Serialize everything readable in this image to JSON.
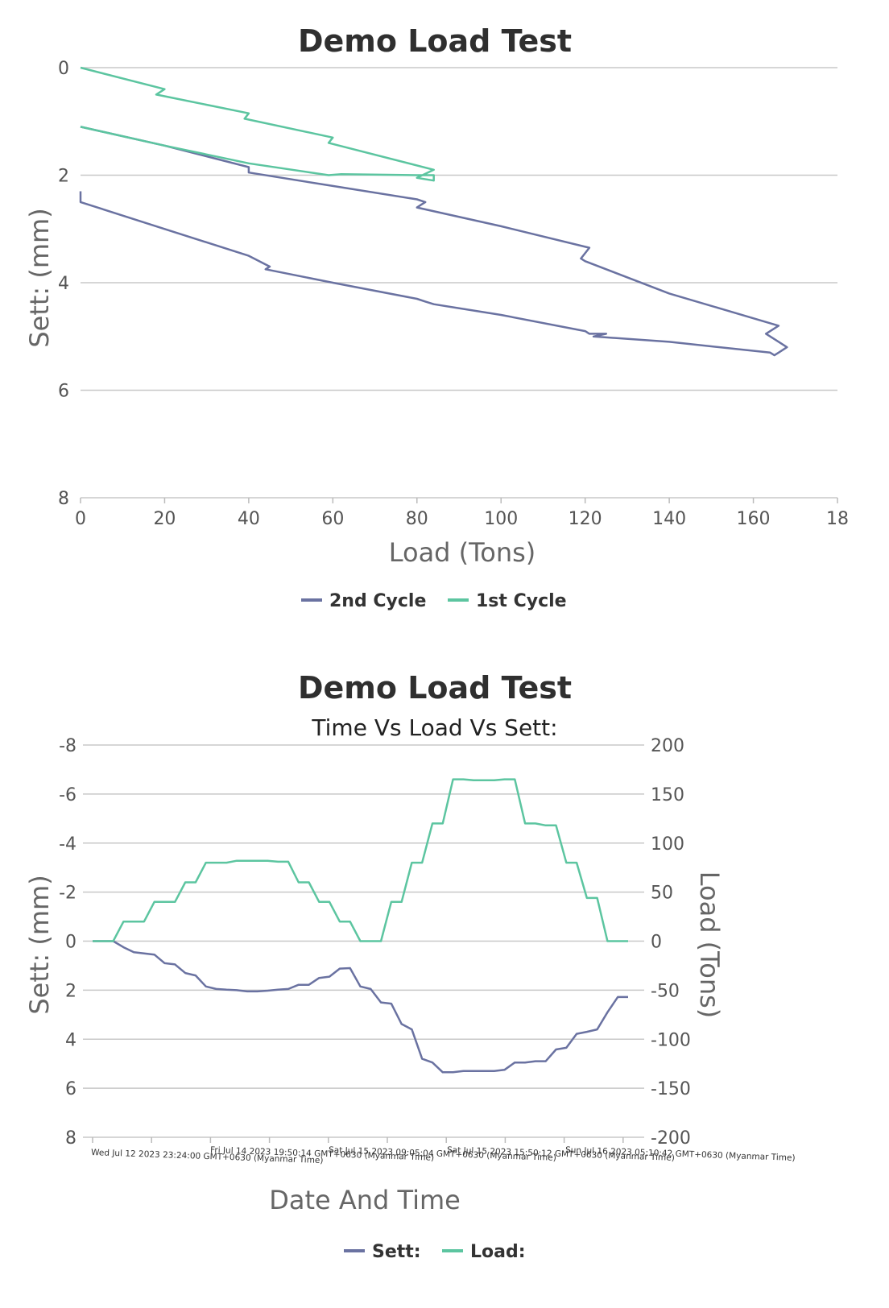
{
  "charts": [
    {
      "title": "Demo Load Test",
      "xlabel": "Load (Tons)",
      "ylabel": "Sett: (mm)",
      "legend": [
        {
          "label": "2nd Cycle",
          "color": "#6a72a1"
        },
        {
          "label": "1st Cycle",
          "color": "#5cc5a0"
        }
      ]
    },
    {
      "title": "Demo Load Test",
      "subtitle": "Time Vs Load Vs Sett:",
      "xlabel": "Date And Time",
      "ylabel_left": "Sett: (mm)",
      "ylabel_right": "Load (Tons)",
      "legend": [
        {
          "label": "Sett:",
          "color": "#6a72a1"
        },
        {
          "label": "Load:",
          "color": "#5cc5a0"
        }
      ]
    }
  ],
  "chart_data": [
    {
      "type": "line",
      "title": "Demo Load Test",
      "xlabel": "Load (Tons)",
      "ylabel": "Sett: (mm)",
      "xlim": [
        0,
        180
      ],
      "ylim": [
        0,
        8
      ],
      "y_reversed": true,
      "x_ticks": [
        "0",
        "20",
        "40",
        "60",
        "80",
        "100",
        "120",
        "140",
        "160",
        "18"
      ],
      "y_ticks": [
        "0",
        "2",
        "4",
        "6",
        "8"
      ],
      "legend_position": "bottom",
      "series": [
        {
          "name": "2nd Cycle",
          "color": "#6a72a1",
          "points": [
            [
              0,
              2.3
            ],
            [
              0,
              2.5
            ],
            [
              20,
              3.0
            ],
            [
              40,
              3.5
            ],
            [
              45,
              3.7
            ],
            [
              44,
              3.75
            ],
            [
              60,
              4.0
            ],
            [
              80,
              4.3
            ],
            [
              82,
              4.35
            ],
            [
              84,
              4.4
            ],
            [
              100,
              4.6
            ],
            [
              120,
              4.9
            ],
            [
              121,
              4.95
            ],
            [
              125,
              4.95
            ],
            [
              122,
              5.0
            ],
            [
              140,
              5.1
            ],
            [
              164,
              5.3
            ],
            [
              165,
              5.35
            ],
            [
              166,
              5.3
            ],
            [
              168,
              5.2
            ],
            [
              165,
              5.05
            ],
            [
              163,
              4.95
            ],
            [
              166,
              4.8
            ],
            [
              140,
              4.2
            ],
            [
              120,
              3.6
            ],
            [
              119,
              3.55
            ],
            [
              121,
              3.35
            ],
            [
              100,
              2.95
            ],
            [
              80,
              2.6
            ],
            [
              81,
              2.55
            ],
            [
              82,
              2.5
            ],
            [
              80,
              2.45
            ],
            [
              60,
              2.2
            ],
            [
              40,
              1.95
            ],
            [
              40,
              1.85
            ],
            [
              20,
              1.45
            ],
            [
              0,
              1.1
            ]
          ]
        },
        {
          "name": "1st Cycle",
          "color": "#5cc5a0",
          "points": [
            [
              0,
              0
            ],
            [
              20,
              0.4
            ],
            [
              18,
              0.5
            ],
            [
              40,
              0.85
            ],
            [
              39,
              0.95
            ],
            [
              60,
              1.3
            ],
            [
              59,
              1.4
            ],
            [
              84,
              1.9
            ],
            [
              80,
              2.05
            ],
            [
              84,
              2.1
            ],
            [
              84,
              2.0
            ],
            [
              80,
              2.0
            ],
            [
              62,
              1.98
            ],
            [
              59,
              2.0
            ],
            [
              40,
              1.78
            ],
            [
              20,
              1.45
            ],
            [
              0,
              1.1
            ]
          ]
        }
      ]
    },
    {
      "type": "line",
      "title": "Demo Load Test",
      "subtitle": "Time Vs Load Vs Sett:",
      "xlabel": "Date And Time",
      "ylabel_left": "Sett: (mm)",
      "ylabel_right": "Load (Tons)",
      "ylim_left": [
        -8,
        8
      ],
      "ylim_right": [
        -200,
        200
      ],
      "y_left_ticks": [
        "-8",
        "-6",
        "-4",
        "-2",
        "0",
        "2",
        "4",
        "6",
        "8"
      ],
      "y_right_ticks": [
        "200",
        "150",
        "100",
        "50",
        "0",
        "-50",
        "-100",
        "-150",
        "-200"
      ],
      "x_tick_labels": [
        "Wed Jul 12 2023 23:24:00 GMT+0630 (Myanmar Time)",
        "Fri Jul 14 2023 19:50:14 GMT+0630 (Myanmar Time)",
        "Sat Jul 15 2023 09:05:04 GMT+0630 (Myanmar Time)",
        "Sat Jul 15 2023 15:50:12 GMT+0630 (Myanmar Time)",
        "Sun Jul 16 2023 05:10:42 GMT+0630 (Myanmar Time)"
      ],
      "legend_position": "bottom",
      "series": [
        {
          "name": "Sett:",
          "axis": "left",
          "color": "#6a72a1",
          "values": [
            0,
            0,
            0,
            0.25,
            0.45,
            0.5,
            0.55,
            0.9,
            0.95,
            1.3,
            1.4,
            1.85,
            1.95,
            1.98,
            2.0,
            2.05,
            2.05,
            2.02,
            1.98,
            1.95,
            1.78,
            1.78,
            1.5,
            1.45,
            1.12,
            1.1,
            1.85,
            1.95,
            2.5,
            2.55,
            3.38,
            3.6,
            4.8,
            4.95,
            5.35,
            5.35,
            5.3,
            5.3,
            5.3,
            5.3,
            5.25,
            4.95,
            4.95,
            4.9,
            4.9,
            4.42,
            4.35,
            3.78,
            3.7,
            3.6,
            2.9,
            2.28,
            2.28
          ]
        },
        {
          "name": "Load:",
          "axis": "right",
          "color": "#5cc5a0",
          "values": [
            0,
            0,
            0,
            20,
            20,
            20,
            40,
            40,
            40,
            60,
            60,
            80,
            80,
            80,
            82,
            82,
            82,
            82,
            81,
            81,
            60,
            60,
            40,
            40,
            20,
            20,
            0,
            0,
            0,
            40,
            40,
            80,
            80,
            120,
            120,
            165,
            165,
            164,
            164,
            164,
            165,
            165,
            120,
            120,
            118,
            118,
            80,
            80,
            44,
            44,
            0,
            0,
            0
          ]
        }
      ]
    }
  ]
}
